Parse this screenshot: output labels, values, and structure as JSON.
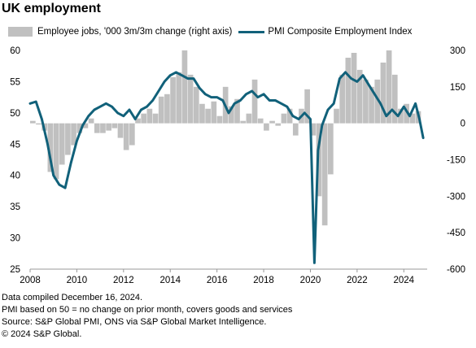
{
  "title": "UK employment",
  "legend": {
    "bars_label": "Employee jobs, '000 3m/3m change (right axis)",
    "line_label": "PMI Composite Employment Index"
  },
  "notes": [
    "Data compiled December 16, 2024.",
    "PMI based on 50 = no change on prior month, covers goods and services",
    "Source: S&P Global PMI, ONS via S&P Global Market Intelligence.",
    "© 2024 S&P Global."
  ],
  "colors": {
    "line": "#11617a",
    "bars": "#c0c0c0",
    "axis": "#999999"
  },
  "chart_data": {
    "type": "bar+line",
    "title": "UK employment",
    "x_range": [
      2008,
      2025
    ],
    "x_ticks": [
      2008,
      2010,
      2012,
      2014,
      2016,
      2018,
      2020,
      2022,
      2024
    ],
    "y_left": {
      "range": [
        25,
        60
      ],
      "ticks": [
        25,
        30,
        35,
        40,
        45,
        50,
        55,
        60
      ]
    },
    "y_right": {
      "range": [
        -600,
        300
      ],
      "ticks": [
        -600,
        -450,
        -300,
        -150,
        0,
        150,
        300
      ]
    },
    "grid": false,
    "legend_position": "top",
    "series": [
      {
        "name": "Employee jobs, '000 3m/3m change (right axis)",
        "type": "bar",
        "axis": "right",
        "x": [
          2008.0,
          2008.25,
          2008.5,
          2008.75,
          2009.0,
          2009.25,
          2009.5,
          2009.75,
          2010.0,
          2010.25,
          2010.5,
          2010.75,
          2011.0,
          2011.25,
          2011.5,
          2011.75,
          2012.0,
          2012.25,
          2012.5,
          2012.75,
          2013.0,
          2013.25,
          2013.5,
          2013.75,
          2014.0,
          2014.25,
          2014.5,
          2014.75,
          2015.0,
          2015.25,
          2015.5,
          2015.75,
          2016.0,
          2016.25,
          2016.5,
          2016.75,
          2017.0,
          2017.25,
          2017.5,
          2017.75,
          2018.0,
          2018.25,
          2018.5,
          2018.75,
          2019.0,
          2019.25,
          2019.5,
          2019.75,
          2020.0,
          2020.25,
          2020.5,
          2020.75,
          2021.0,
          2021.25,
          2021.5,
          2021.75,
          2022.0,
          2022.25,
          2022.5,
          2022.75,
          2023.0,
          2023.25,
          2023.5,
          2023.75,
          2024.0,
          2024.25,
          2024.5
        ],
        "values": [
          10,
          -5,
          -30,
          -200,
          -230,
          -170,
          -130,
          -90,
          -40,
          -20,
          20,
          -40,
          -40,
          -30,
          -20,
          -60,
          -110,
          -90,
          20,
          40,
          60,
          40,
          110,
          120,
          190,
          210,
          300,
          200,
          150,
          80,
          60,
          90,
          30,
          150,
          70,
          100,
          10,
          40,
          180,
          20,
          -30,
          10,
          -10,
          40,
          60,
          -50,
          60,
          140,
          -50,
          -300,
          -420,
          -210,
          60,
          200,
          270,
          290,
          220,
          180,
          150,
          180,
          250,
          300,
          200,
          60,
          80,
          40,
          50
        ]
      },
      {
        "name": "PMI Composite Employment Index",
        "type": "line",
        "axis": "left",
        "x": [
          2008.0,
          2008.25,
          2008.5,
          2008.75,
          2009.0,
          2009.25,
          2009.5,
          2009.75,
          2010.0,
          2010.25,
          2010.5,
          2010.75,
          2011.0,
          2011.25,
          2011.5,
          2011.75,
          2012.0,
          2012.25,
          2012.5,
          2012.75,
          2013.0,
          2013.25,
          2013.5,
          2013.75,
          2014.0,
          2014.25,
          2014.5,
          2014.75,
          2015.0,
          2015.25,
          2015.5,
          2015.75,
          2016.0,
          2016.25,
          2016.5,
          2016.75,
          2017.0,
          2017.25,
          2017.5,
          2017.75,
          2018.0,
          2018.25,
          2018.5,
          2018.75,
          2019.0,
          2019.25,
          2019.5,
          2019.75,
          2020.0,
          2020.17,
          2020.33,
          2020.5,
          2020.75,
          2021.0,
          2021.25,
          2021.5,
          2021.75,
          2022.0,
          2022.25,
          2022.5,
          2022.75,
          2023.0,
          2023.25,
          2023.5,
          2023.75,
          2024.0,
          2024.25,
          2024.5,
          2024.67,
          2024.83
        ],
        "values": [
          51.5,
          51.8,
          49.0,
          45.0,
          40.0,
          38.5,
          38.0,
          42.0,
          45.5,
          48.0,
          49.5,
          50.5,
          51.0,
          51.5,
          51.0,
          50.0,
          49.5,
          50.5,
          49.0,
          50.5,
          51.0,
          52.0,
          53.5,
          55.0,
          56.0,
          56.5,
          56.0,
          55.5,
          55.5,
          54.0,
          53.0,
          52.5,
          52.5,
          52.0,
          50.0,
          51.5,
          52.0,
          53.0,
          53.5,
          52.5,
          53.0,
          52.0,
          52.0,
          51.5,
          51.0,
          49.5,
          49.0,
          50.0,
          49.0,
          26.0,
          44.0,
          48.0,
          50.5,
          51.5,
          55.5,
          56.5,
          55.5,
          55.0,
          56.0,
          54.5,
          53.0,
          51.5,
          49.5,
          50.5,
          49.5,
          51.0,
          49.5,
          51.5,
          49.0,
          46.0
        ]
      }
    ]
  }
}
